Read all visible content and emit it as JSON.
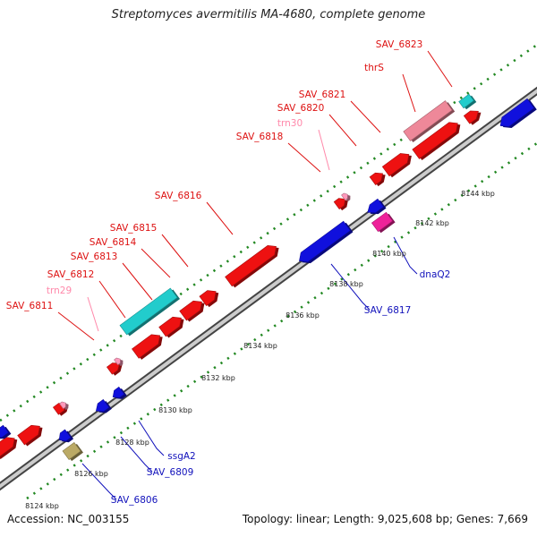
{
  "title": "Streptomyces avermitilis MA-4680, complete genome",
  "footer": {
    "accession": "Accession: NC_003155",
    "summary": "Topology: linear; Length: 9,025,608 bp; Genes: 7,669"
  },
  "colors": {
    "forward_gene": "#ee1111",
    "reverse_gene": "#1010dd",
    "trna": "#ff99bb",
    "highlight_cyan": "#22cccc",
    "highlight_pink": "#ee8899",
    "highlight_magenta": "#ee2299",
    "highlight_olive": "#bbaa66",
    "backbone": "#999999",
    "tick_dots": "#228822",
    "label_forward": "#dd1111",
    "label_reverse": "#1111bb",
    "label_trna": "#ff88aa"
  },
  "scale_labels": [
    "8124 kbp",
    "8126 kbp",
    "8128 kbp",
    "8130 kbp",
    "8132 kbp",
    "8134 kbp",
    "8136 kbp",
    "8138 kbp",
    "8140 kbp",
    "8142 kbp",
    "8144 kbp"
  ],
  "forward_labels": [
    {
      "text": "SAV_6811",
      "type": "gene"
    },
    {
      "text": "trn29",
      "type": "trna"
    },
    {
      "text": "SAV_6812",
      "type": "gene"
    },
    {
      "text": "SAV_6813",
      "type": "gene"
    },
    {
      "text": "SAV_6814",
      "type": "gene"
    },
    {
      "text": "SAV_6815",
      "type": "gene"
    },
    {
      "text": "SAV_6816",
      "type": "gene"
    },
    {
      "text": "SAV_6818",
      "type": "gene"
    },
    {
      "text": "trn30",
      "type": "trna"
    },
    {
      "text": "SAV_6820",
      "type": "gene"
    },
    {
      "text": "SAV_6821",
      "type": "gene"
    },
    {
      "text": "thrS",
      "type": "gene"
    },
    {
      "text": "SAV_6823",
      "type": "gene"
    }
  ],
  "reverse_labels": [
    {
      "text": "SAV_6806"
    },
    {
      "text": "SAV_6809"
    },
    {
      "text": "ssgA2"
    },
    {
      "text": "SAV_6817"
    },
    {
      "text": "dnaQ2"
    }
  ]
}
